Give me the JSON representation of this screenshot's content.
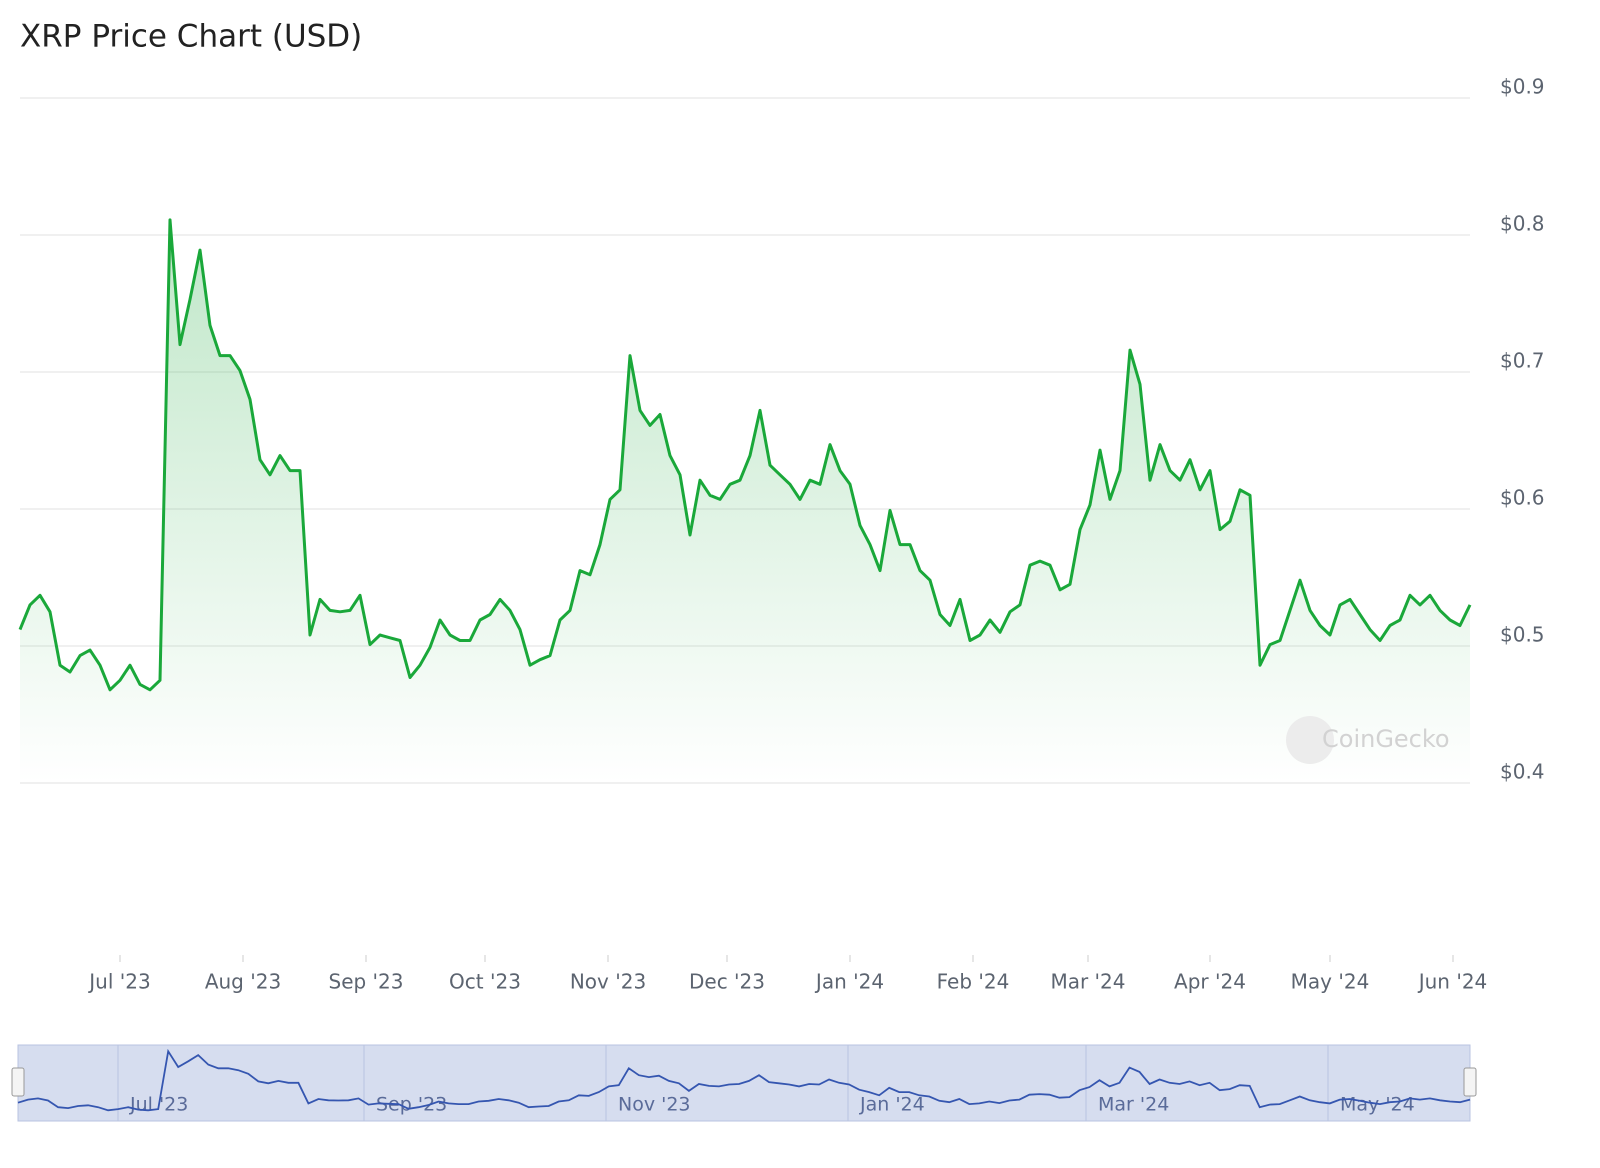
{
  "chart_data": {
    "type": "line",
    "title": "XRP Price Chart (USD)",
    "watermark": "CoinGecko",
    "color": "#1aa83a",
    "values": [
      0.512,
      0.53,
      0.537,
      0.525,
      0.486,
      0.481,
      0.493,
      0.497,
      0.486,
      0.468,
      0.475,
      0.486,
      0.472,
      0.468,
      0.475,
      0.811,
      0.72,
      0.753,
      0.789,
      0.734,
      0.712,
      0.712,
      0.701,
      0.68,
      0.636,
      0.625,
      0.639,
      0.628,
      0.628,
      0.508,
      0.534,
      0.526,
      0.525,
      0.526,
      0.537,
      0.501,
      0.508,
      0.506,
      0.504,
      0.477,
      0.486,
      0.499,
      0.519,
      0.508,
      0.504,
      0.504,
      0.519,
      0.523,
      0.534,
      0.526,
      0.512,
      0.486,
      0.49,
      0.493,
      0.519,
      0.526,
      0.555,
      0.552,
      0.574,
      0.607,
      0.614,
      0.712,
      0.672,
      0.661,
      0.669,
      0.639,
      0.625,
      0.581,
      0.621,
      0.61,
      0.607,
      0.618,
      0.621,
      0.639,
      0.672,
      0.632,
      0.625,
      0.618,
      0.607,
      0.621,
      0.618,
      0.647,
      0.628,
      0.618,
      0.588,
      0.574,
      0.555,
      0.599,
      0.574,
      0.574,
      0.555,
      0.548,
      0.523,
      0.515,
      0.534,
      0.504,
      0.508,
      0.519,
      0.51,
      0.525,
      0.53,
      0.559,
      0.562,
      0.559,
      0.541,
      0.545,
      0.585,
      0.603,
      0.643,
      0.607,
      0.628,
      0.716,
      0.691,
      0.621,
      0.647,
      0.628,
      0.621,
      0.636,
      0.614,
      0.628,
      0.585,
      0.591,
      0.614,
      0.61,
      0.486,
      0.501,
      0.504,
      0.526,
      0.548,
      0.526,
      0.515,
      0.508,
      0.53,
      0.534,
      0.523,
      0.512,
      0.504,
      0.515,
      0.519,
      0.537,
      0.53,
      0.537,
      0.526,
      0.519,
      0.515,
      0.53
    ],
    "xlim": [
      0,
      145
    ],
    "xticks": [
      {
        "value": 10,
        "label": "Jul '23"
      },
      {
        "value": 22.3,
        "label": "Aug '23"
      },
      {
        "value": 34.6,
        "label": "Sep '23"
      },
      {
        "value": 46.5,
        "label": "Oct '23"
      },
      {
        "value": 58.8,
        "label": "Nov '23"
      },
      {
        "value": 70.7,
        "label": "Dec '23"
      },
      {
        "value": 83,
        "label": "Jan '24"
      },
      {
        "value": 95.3,
        "label": "Feb '24"
      },
      {
        "value": 106.8,
        "label": "Mar '24"
      },
      {
        "value": 119,
        "label": "Apr '24"
      },
      {
        "value": 131,
        "label": "May '24"
      },
      {
        "value": 143.3,
        "label": "Jun '24"
      }
    ],
    "ylim": [
      0.4,
      0.9
    ],
    "yticks": [
      {
        "value": 0.4,
        "label": "$0.4"
      },
      {
        "value": 0.5,
        "label": "$0.5"
      },
      {
        "value": 0.6,
        "label": "$0.6"
      },
      {
        "value": 0.7,
        "label": "$0.7"
      },
      {
        "value": 0.8,
        "label": "$0.8"
      },
      {
        "value": 0.9,
        "label": "$0.9"
      }
    ],
    "grid": true
  }
}
